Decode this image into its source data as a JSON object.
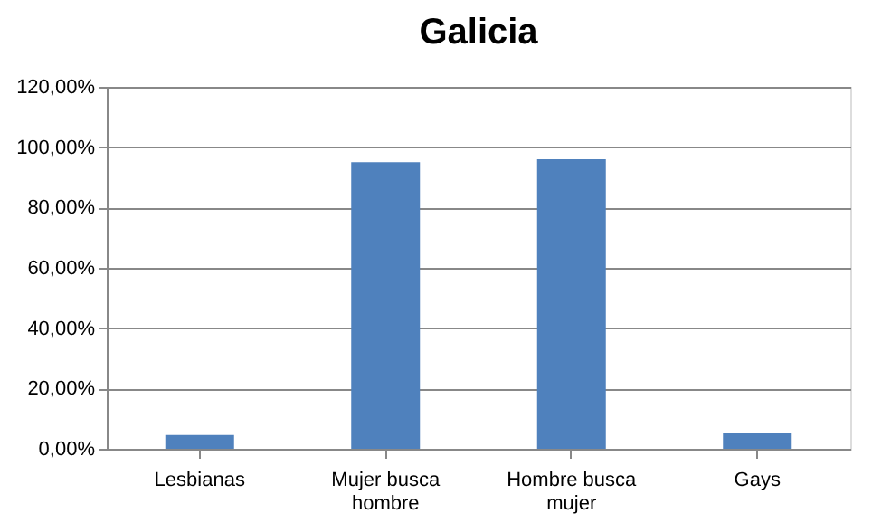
{
  "chart_data": {
    "type": "bar",
    "title": "Galicia",
    "categories": [
      "Lesbianas",
      "Mujer busca hombre",
      "Hombre busca mujer",
      "Gays"
    ],
    "values": [
      4.6,
      95,
      96,
      5.2
    ],
    "color": "#4f81bd",
    "ylim": [
      0,
      120
    ],
    "yticks": [
      {
        "value": 0,
        "label": "0,00%"
      },
      {
        "value": 20,
        "label": "20,00%"
      },
      {
        "value": 40,
        "label": "40,00%"
      },
      {
        "value": 60,
        "label": "60,00%"
      },
      {
        "value": 80,
        "label": "80,00%"
      },
      {
        "value": 100,
        "label": "100,00%"
      },
      {
        "value": 120,
        "label": "120,00%"
      }
    ],
    "grid": "y"
  }
}
